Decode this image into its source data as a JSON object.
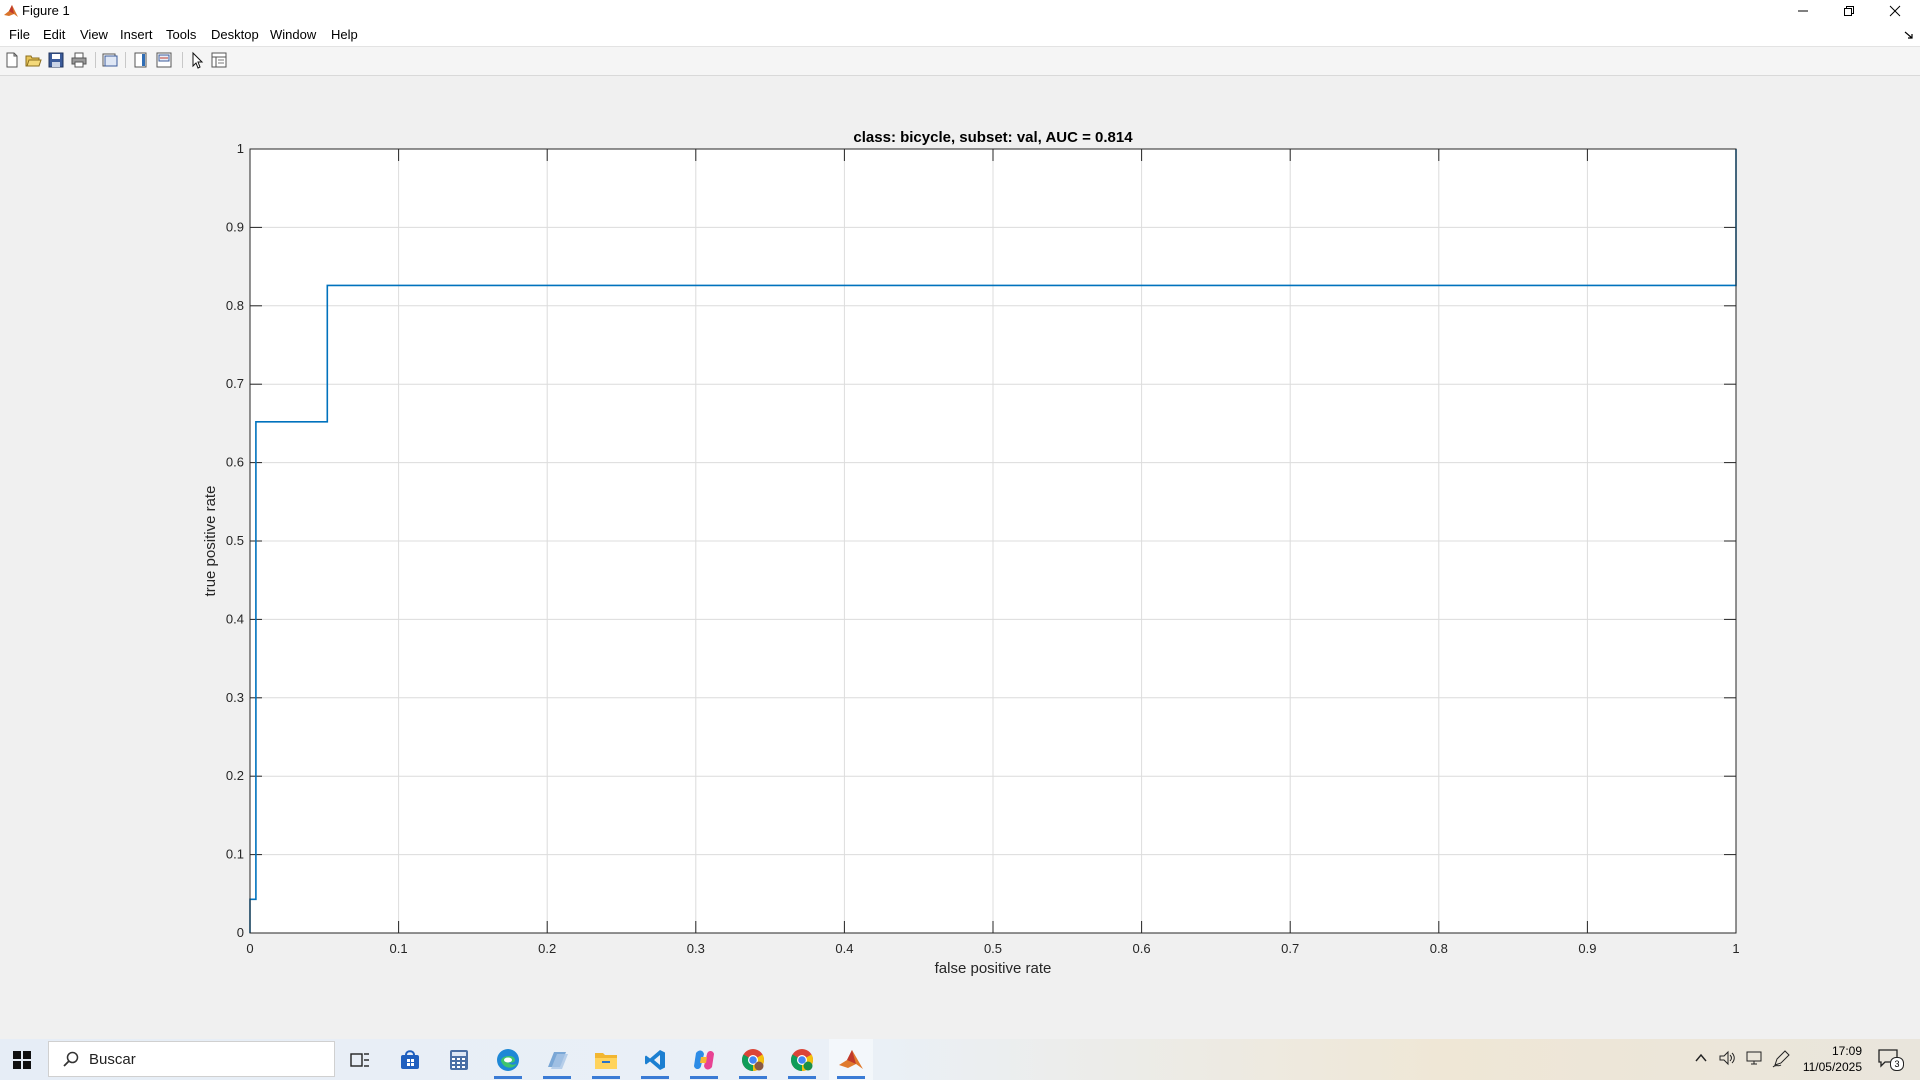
{
  "window": {
    "title": "Figure 1",
    "controls": {
      "minimize": "minimize",
      "maximize": "restore",
      "close": "close"
    }
  },
  "menubar": {
    "items": [
      "File",
      "Edit",
      "View",
      "Insert",
      "Tools",
      "Desktop",
      "Window",
      "Help"
    ]
  },
  "toolbar": {
    "buttons": [
      "new-figure-icon",
      "open-file-icon",
      "save-icon",
      "print-icon",
      "link-plot-icon",
      "colorbar-icon",
      "legend-icon",
      "edit-plot-icon",
      "property-inspector-icon"
    ]
  },
  "colors": {
    "line": "#0072bd",
    "grid": "#dcdcdc",
    "axes": "#262626",
    "background": "#f0f0f0"
  },
  "chart_data": {
    "type": "line",
    "title": "class: bicycle, subset: val, AUC = 0.814",
    "xlabel": "false positive rate",
    "ylabel": "true positive rate",
    "xlim": [
      0,
      1
    ],
    "ylim": [
      0,
      1
    ],
    "xticks": [
      "0",
      "0.1",
      "0.2",
      "0.3",
      "0.4",
      "0.5",
      "0.6",
      "0.7",
      "0.8",
      "0.9",
      "1"
    ],
    "yticks": [
      "0",
      "0.1",
      "0.2",
      "0.3",
      "0.4",
      "0.5",
      "0.6",
      "0.7",
      "0.8",
      "0.9",
      "1"
    ],
    "grid": true,
    "series": [
      {
        "x": [
          0,
          0,
          0.004,
          0.004,
          0.052,
          0.052,
          1,
          1
        ],
        "y": [
          0,
          0.043,
          0.043,
          0.652,
          0.652,
          0.826,
          0.826,
          1
        ]
      }
    ]
  },
  "taskbar": {
    "start_icon": "windows-start-icon",
    "search_placeholder": "Buscar",
    "apps": [
      "task-view-icon",
      "store-icon",
      "calculator-icon",
      "edge-icon",
      "app-icon",
      "file-explorer-icon",
      "vscode-icon",
      "copilot-icon",
      "chrome-icon",
      "chrome-profile-icon",
      "matlab-icon"
    ],
    "tray": {
      "time": "17:09",
      "date": "11/05/2025",
      "notifications": "3"
    }
  }
}
